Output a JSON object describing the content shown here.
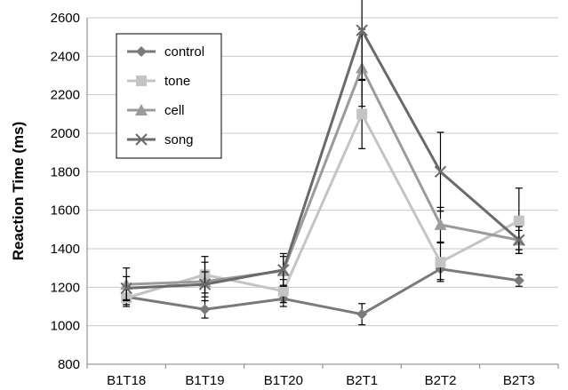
{
  "chart_data": {
    "type": "line",
    "title": "",
    "xlabel": "",
    "ylabel": "Reaction Time (ms)",
    "ylim": [
      800,
      2600
    ],
    "yticks": [
      800,
      1000,
      1200,
      1400,
      1600,
      1800,
      2000,
      2200,
      2400,
      2600
    ],
    "grid": true,
    "legend_position": "top-left",
    "categories": [
      "B1T18",
      "B1T19",
      "B1T20",
      "B2T1",
      "B2T2",
      "B2T3"
    ],
    "series": [
      {
        "name": "control",
        "marker": "diamond",
        "color": "#7a7a7a",
        "values": [
          1150,
          1085,
          1140,
          1060,
          1295,
          1235
        ],
        "errors": [
          40,
          45,
          40,
          55,
          55,
          30
        ]
      },
      {
        "name": "tone",
        "marker": "square",
        "color": "#c4c4c4",
        "values": [
          1145,
          1265,
          1180,
          2100,
          1330,
          1545
        ],
        "errors": [
          45,
          95,
          60,
          180,
          100,
          170
        ]
      },
      {
        "name": "cell",
        "marker": "triangle",
        "color": "#9b9b9b",
        "values": [
          1215,
          1230,
          1285,
          2340,
          1525,
          1445
        ],
        "errors": [
          85,
          100,
          75,
          200,
          90,
          50
        ]
      },
      {
        "name": "song",
        "marker": "x",
        "color": "#6a6a6a",
        "values": [
          1195,
          1215,
          1290,
          2535,
          1800,
          1445
        ],
        "errors": [
          60,
          65,
          85,
          260,
          205,
          70
        ]
      }
    ]
  }
}
